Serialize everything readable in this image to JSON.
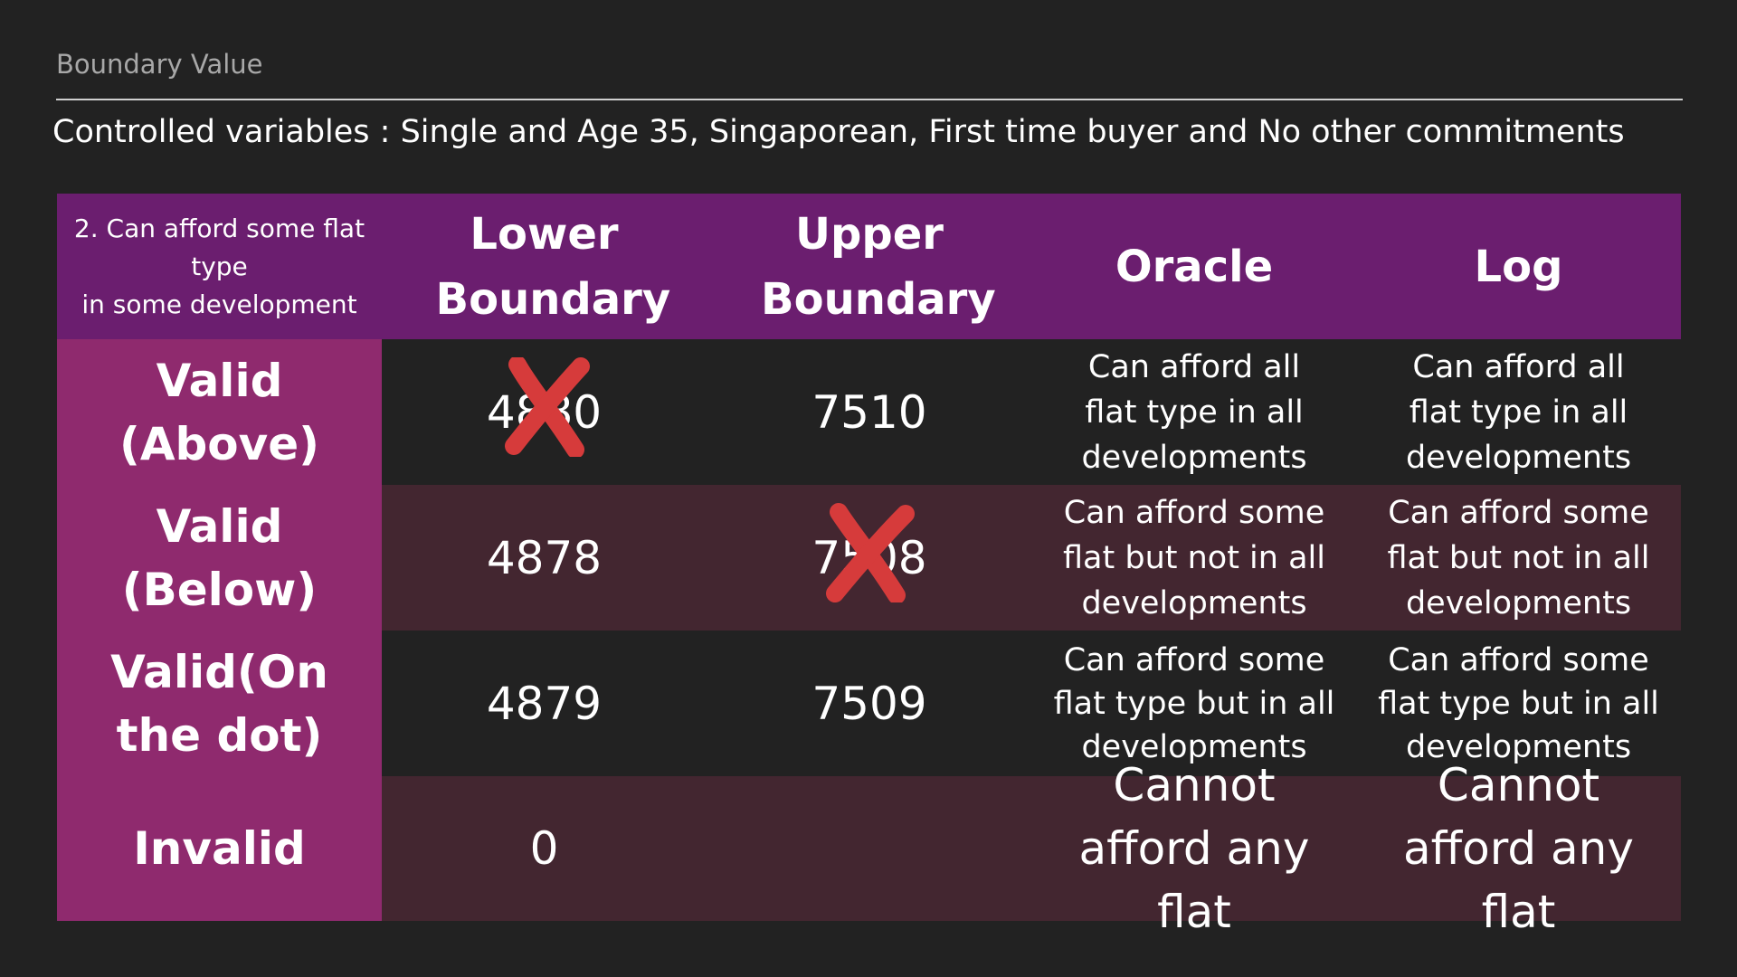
{
  "header": {
    "title": "Boundary Value",
    "subtitle": "Controlled variables : Single and Age 35, Singaporean, First time buyer and No other commitments"
  },
  "table": {
    "corner_label": "2. Can afford some flat type\nin some development",
    "columns": [
      "Lower Boundary",
      "Upper Boundary",
      "Oracle",
      "Log"
    ],
    "rows": [
      {
        "label": "Valid (Above)",
        "lower": "4880",
        "upper": "7510",
        "oracle": "Can afford all flat type in all developments",
        "log": "Can afford all flat type in all developments"
      },
      {
        "label": "Valid (Below)",
        "lower": "4878",
        "upper": "7508",
        "oracle": "Can afford some flat but not in all developments",
        "log": "Can afford some flat but not in all developments"
      },
      {
        "label": "Valid(On the dot)",
        "lower": "4879",
        "upper": "7509",
        "oracle": "Can afford some flat type but in all developments",
        "log": "Can afford some flat type but in all developments"
      },
      {
        "label": "Invalid",
        "lower": "0",
        "upper": "",
        "oracle": "Cannot afford any flat",
        "log": "Cannot afford any flat"
      }
    ]
  },
  "marks": {
    "cross_icon": "red-x-icon",
    "cross_color": "#d63b3b"
  }
}
